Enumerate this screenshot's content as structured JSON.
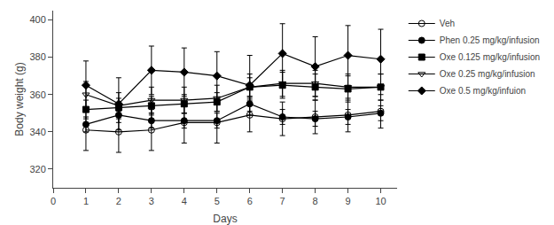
{
  "chart_data": {
    "type": "line",
    "x": [
      1,
      2,
      3,
      4,
      5,
      6,
      7,
      8,
      9,
      10
    ],
    "series": [
      {
        "name": "Veh",
        "color": "black",
        "marker": "circle-open",
        "line_style": "solid",
        "values": [
          341,
          340,
          341,
          345,
          345,
          349,
          347,
          348,
          349,
          351
        ],
        "errors": [
          11,
          11,
          11,
          11,
          11,
          9,
          9,
          9,
          9,
          9
        ]
      },
      {
        "name": "Phen 0.25 mg/kg/infusion",
        "color": "black",
        "marker": "circle",
        "line_style": "solid",
        "values": [
          344,
          349,
          346,
          346,
          346,
          355,
          348,
          347,
          348,
          350
        ],
        "errors": [
          4,
          4,
          4,
          4,
          4,
          4,
          4,
          4,
          4,
          4
        ]
      },
      {
        "name": "Oxe 0.125 mg/kg/infusion",
        "color": "black",
        "marker": "square",
        "line_style": "solid",
        "values": [
          352,
          353,
          354,
          355,
          356,
          364,
          365,
          364,
          363,
          364
        ],
        "errors": [
          5,
          5,
          5,
          5,
          5,
          5,
          7,
          7,
          7,
          7
        ]
      },
      {
        "name": "Oxe 0.25 mg/kg/infusion",
        "color": "black",
        "marker": "triangle-down-open",
        "line_style": "solid",
        "values": [
          360,
          354,
          357,
          357,
          358,
          364,
          366,
          366,
          364,
          364
        ],
        "errors": [
          7,
          7,
          7,
          7,
          7,
          7,
          7,
          7,
          7,
          7
        ]
      },
      {
        "name": "Oxe 0.5 mg/kg/infuion",
        "color": "black",
        "marker": "diamond",
        "line_style": "solid",
        "values": [
          365,
          355,
          373,
          372,
          370,
          365,
          382,
          375,
          381,
          379
        ],
        "errors": [
          13,
          14,
          13,
          13,
          13,
          16,
          16,
          16,
          16,
          16
        ]
      }
    ],
    "xlabel": "Days",
    "ylabel": "Body weight (g)",
    "xlim": [
      0,
      10.5
    ],
    "ylim": [
      310,
      405
    ],
    "xticks": [
      0,
      1,
      2,
      3,
      4,
      5,
      6,
      7,
      8,
      9,
      10
    ],
    "yticks": [
      320,
      340,
      360,
      380,
      400
    ],
    "grid": false,
    "legend": "right"
  }
}
